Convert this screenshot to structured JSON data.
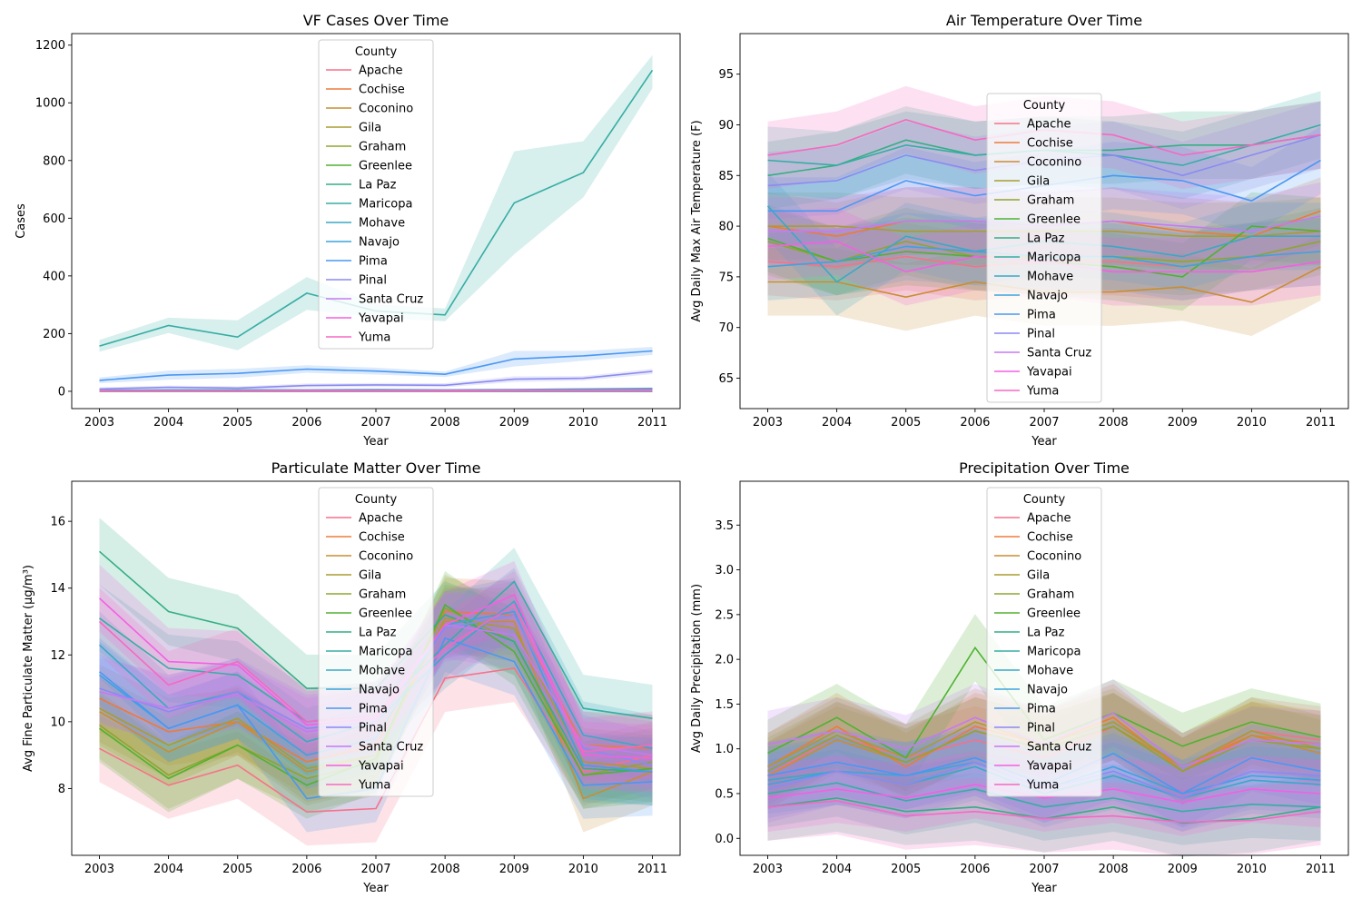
{
  "figure": {
    "background": "#ffffff"
  },
  "legend_title": "County",
  "counties": [
    "Apache",
    "Cochise",
    "Coconino",
    "Gila",
    "Graham",
    "Greenlee",
    "La Paz",
    "Maricopa",
    "Mohave",
    "Navajo",
    "Pima",
    "Pinal",
    "Santa Cruz",
    "Yavapai",
    "Yuma"
  ],
  "colors": [
    "#f77189",
    "#ee7a3a",
    "#c98d31",
    "#a99c31",
    "#8ea531",
    "#50b131",
    "#34ae83",
    "#36ada4",
    "#38a9c5",
    "#3ba4de",
    "#4a97f2",
    "#8a8af2",
    "#c579f4",
    "#f45fe3",
    "#f668c2"
  ],
  "chart_data": [
    {
      "id": "cases",
      "type": "line",
      "title": "VF Cases Over Time",
      "xlabel": "Year",
      "ylabel": "Cases",
      "x": [
        2003,
        2004,
        2005,
        2006,
        2007,
        2008,
        2009,
        2010,
        2011
      ],
      "xticks": [
        "2003",
        "2004",
        "2005",
        "2006",
        "2007",
        "2008",
        "2009",
        "2010",
        "2011"
      ],
      "ylim": [
        -60,
        1240
      ],
      "yticks": [
        0,
        200,
        400,
        600,
        800,
        1000,
        1200
      ],
      "ytick_labels": [
        "0",
        "200",
        "400",
        "600",
        "800",
        "1000",
        "1200"
      ],
      "legend_placement": "upper center",
      "series": [
        {
          "name": "Apache",
          "values": [
            0,
            0,
            0,
            0,
            0,
            0,
            0,
            0,
            0
          ]
        },
        {
          "name": "Cochise",
          "values": [
            2,
            2,
            1,
            2,
            2,
            2,
            3,
            3,
            4
          ]
        },
        {
          "name": "Coconino",
          "values": [
            1,
            1,
            1,
            1,
            1,
            1,
            1,
            1,
            1
          ]
        },
        {
          "name": "Gila",
          "values": [
            1,
            1,
            1,
            1,
            1,
            1,
            2,
            2,
            2
          ]
        },
        {
          "name": "Graham",
          "values": [
            1,
            1,
            1,
            1,
            1,
            1,
            1,
            1,
            1
          ]
        },
        {
          "name": "Greenlee",
          "values": [
            0,
            0,
            0,
            0,
            0,
            0,
            0,
            0,
            0
          ]
        },
        {
          "name": "La Paz",
          "values": [
            1,
            1,
            1,
            1,
            1,
            1,
            1,
            1,
            1
          ]
        },
        {
          "name": "Maricopa",
          "values": [
            157,
            228,
            188,
            340,
            278,
            265,
            653,
            758,
            1113
          ],
          "band": [
            [
              137,
              178
            ],
            [
              202,
              255
            ],
            [
              142,
              246
            ],
            [
              282,
              396
            ],
            [
              255,
              301
            ],
            [
              243,
              287
            ],
            [
              475,
              832
            ],
            [
              672,
              867
            ],
            [
              1050,
              1165
            ]
          ]
        },
        {
          "name": "Mohave",
          "values": [
            3,
            5,
            5,
            5,
            6,
            5,
            6,
            8,
            10
          ]
        },
        {
          "name": "Navajo",
          "values": [
            1,
            1,
            1,
            1,
            1,
            1,
            1,
            1,
            1
          ]
        },
        {
          "name": "Pima",
          "values": [
            38,
            56,
            62,
            77,
            70,
            59,
            112,
            123,
            140
          ],
          "band": [
            [
              28,
              48
            ],
            [
              40,
              72
            ],
            [
              47,
              78
            ],
            [
              64,
              90
            ],
            [
              58,
              82
            ],
            [
              50,
              68
            ],
            [
              86,
              140
            ],
            [
              106,
              140
            ],
            [
              126,
              154
            ]
          ]
        },
        {
          "name": "Pinal",
          "values": [
            8,
            14,
            11,
            20,
            22,
            21,
            42,
            45,
            69
          ],
          "band": [
            [
              2,
              14
            ],
            [
              8,
              20
            ],
            [
              5,
              17
            ],
            [
              13,
              27
            ],
            [
              15,
              29
            ],
            [
              14,
              28
            ],
            [
              32,
              52
            ],
            [
              37,
              53
            ],
            [
              60,
              78
            ]
          ]
        },
        {
          "name": "Santa Cruz",
          "values": [
            1,
            1,
            1,
            1,
            1,
            1,
            2,
            2,
            2
          ]
        },
        {
          "name": "Yavapai",
          "values": [
            2,
            2,
            2,
            3,
            3,
            3,
            4,
            4,
            5
          ]
        },
        {
          "name": "Yuma",
          "values": [
            2,
            2,
            2,
            3,
            3,
            3,
            4,
            4,
            5
          ]
        }
      ]
    },
    {
      "id": "temp",
      "type": "line",
      "title": "Air Temperature Over Time",
      "xlabel": "Year",
      "ylabel": "Avg Daily Max Air Temperature (F)",
      "x": [
        2003,
        2004,
        2005,
        2006,
        2007,
        2008,
        2009,
        2010,
        2011
      ],
      "xticks": [
        "2003",
        "2004",
        "2005",
        "2006",
        "2007",
        "2008",
        "2009",
        "2010",
        "2011"
      ],
      "ylim": [
        62,
        99
      ],
      "yticks": [
        65,
        70,
        75,
        80,
        85,
        90,
        95
      ],
      "ytick_labels": [
        "65",
        "70",
        "75",
        "80",
        "85",
        "90",
        "95"
      ],
      "legend_placement": "center",
      "series": [
        {
          "name": "Apache",
          "values": [
            76.5,
            76.0,
            77.0,
            76.0,
            76.5,
            76.5,
            76.0,
            77.0,
            77.5
          ]
        },
        {
          "name": "Cochise",
          "values": [
            80.0,
            79.0,
            80.5,
            80.5,
            80.0,
            80.5,
            79.5,
            79.0,
            81.5
          ]
        },
        {
          "name": "Coconino",
          "values": [
            74.5,
            74.5,
            73.0,
            74.5,
            73.5,
            73.5,
            74.0,
            72.5,
            76.0
          ]
        },
        {
          "name": "Gila",
          "values": [
            80.0,
            80.0,
            79.5,
            79.5,
            79.5,
            79.5,
            79.0,
            79.0,
            79.5
          ]
        },
        {
          "name": "Graham",
          "values": [
            78.5,
            76.5,
            78.5,
            77.0,
            77.0,
            77.0,
            76.5,
            77.0,
            78.5
          ]
        },
        {
          "name": "Greenlee",
          "values": [
            78.8,
            76.5,
            77.5,
            77.0,
            76.5,
            76.0,
            75.0,
            80.0,
            79.5
          ]
        },
        {
          "name": "La Paz",
          "values": [
            85.0,
            86.0,
            88.5,
            87.0,
            87.5,
            87.5,
            88.0,
            88.0,
            89.0
          ]
        },
        {
          "name": "Maricopa",
          "values": [
            86.5,
            86.0,
            88.0,
            87.0,
            87.5,
            87.0,
            86.0,
            88.0,
            90.0
          ]
        },
        {
          "name": "Mohave",
          "values": [
            82.0,
            74.5,
            79.0,
            77.5,
            78.5,
            78.0,
            77.0,
            79.0,
            79.0
          ]
        },
        {
          "name": "Navajo",
          "values": [
            76.0,
            76.5,
            78.0,
            77.5,
            77.0,
            77.0,
            76.0,
            77.0,
            77.5
          ]
        },
        {
          "name": "Pima",
          "values": [
            81.5,
            81.5,
            84.5,
            83.0,
            84.0,
            85.0,
            84.5,
            82.5,
            86.5
          ]
        },
        {
          "name": "Pinal",
          "values": [
            84.0,
            84.5,
            87.0,
            85.5,
            86.5,
            87.0,
            85.0,
            87.0,
            89.0
          ]
        },
        {
          "name": "Santa Cruz",
          "values": [
            79.5,
            79.5,
            80.5,
            80.5,
            80.0,
            80.5,
            80.0,
            79.5,
            81.0
          ]
        },
        {
          "name": "Yavapai",
          "values": [
            78.0,
            78.5,
            75.5,
            77.0,
            76.5,
            75.5,
            75.5,
            75.5,
            76.5
          ]
        },
        {
          "name": "Yuma",
          "values": [
            87.0,
            88.0,
            90.5,
            88.5,
            89.5,
            89.0,
            87.0,
            88.0,
            89.0
          ]
        }
      ]
    },
    {
      "id": "pm",
      "type": "line",
      "title": "Particulate Matter Over Time",
      "xlabel": "Year",
      "ylabel": "Avg Fine Particulate Matter (µg/m³)",
      "x": [
        2003,
        2004,
        2005,
        2006,
        2007,
        2008,
        2009,
        2010,
        2011
      ],
      "xticks": [
        "2003",
        "2004",
        "2005",
        "2006",
        "2007",
        "2008",
        "2009",
        "2010",
        "2011"
      ],
      "ylim": [
        6.0,
        17.2
      ],
      "yticks": [
        8,
        10,
        12,
        14,
        16
      ],
      "ytick_labels": [
        "8",
        "10",
        "12",
        "14",
        "16"
      ],
      "legend_placement": "upper center",
      "series": [
        {
          "name": "Apache",
          "values": [
            9.2,
            8.1,
            8.7,
            7.3,
            7.4,
            11.3,
            11.6,
            8.5,
            9.0
          ]
        },
        {
          "name": "Cochise",
          "values": [
            10.7,
            9.7,
            10.0,
            8.8,
            9.3,
            13.3,
            13.2,
            9.3,
            9.2
          ]
        },
        {
          "name": "Coconino",
          "values": [
            10.3,
            9.1,
            10.0,
            8.5,
            9.0,
            13.0,
            13.0,
            7.7,
            8.5
          ]
        },
        {
          "name": "Gila",
          "values": [
            10.4,
            9.3,
            10.1,
            8.6,
            9.0,
            13.1,
            12.8,
            8.8,
            8.6
          ]
        },
        {
          "name": "Graham",
          "values": [
            9.9,
            8.4,
            9.3,
            8.3,
            8.8,
            13.4,
            12.4,
            8.4,
            8.8
          ]
        },
        {
          "name": "Greenlee",
          "values": [
            9.8,
            8.3,
            9.3,
            8.1,
            8.9,
            13.5,
            12.1,
            8.4,
            8.6
          ]
        },
        {
          "name": "La Paz",
          "values": [
            15.1,
            13.3,
            12.8,
            11.0,
            11.0,
            13.2,
            12.4,
            8.6,
            8.5
          ]
        },
        {
          "name": "Maricopa",
          "values": [
            13.1,
            11.6,
            11.4,
            10.0,
            10.2,
            12.3,
            14.2,
            10.4,
            10.1
          ]
        },
        {
          "name": "Mohave",
          "values": [
            12.3,
            10.4,
            10.9,
            9.4,
            10.0,
            12.0,
            13.6,
            9.6,
            9.2
          ]
        },
        {
          "name": "Navajo",
          "values": [
            11.4,
            9.8,
            10.5,
            9.0,
            9.5,
            12.9,
            13.3,
            8.7,
            8.5
          ]
        },
        {
          "name": "Pima",
          "values": [
            11.5,
            9.8,
            10.5,
            7.7,
            8.0,
            12.5,
            11.8,
            8.1,
            8.2
          ]
        },
        {
          "name": "Pinal",
          "values": [
            11.0,
            10.3,
            10.9,
            9.8,
            10.0,
            12.8,
            13.2,
            9.2,
            8.7
          ]
        },
        {
          "name": "Santa Cruz",
          "values": [
            10.9,
            10.4,
            10.8,
            9.7,
            10.0,
            12.9,
            12.6,
            9.3,
            9.0
          ]
        },
        {
          "name": "Yavapai",
          "values": [
            13.7,
            11.8,
            11.7,
            9.9,
            10.1,
            12.9,
            13.8,
            9.0,
            8.9
          ]
        },
        {
          "name": "Yuma",
          "values": [
            13.0,
            11.1,
            11.8,
            10.0,
            10.2,
            12.2,
            13.5,
            9.1,
            9.3
          ]
        }
      ]
    },
    {
      "id": "precip",
      "type": "line",
      "title": "Precipitation Over Time",
      "xlabel": "Year",
      "ylabel": "Avg Daily Precipitation (mm)",
      "x": [
        2003,
        2004,
        2005,
        2006,
        2007,
        2008,
        2009,
        2010,
        2011
      ],
      "xticks": [
        "2003",
        "2004",
        "2005",
        "2006",
        "2007",
        "2008",
        "2009",
        "2010",
        "2011"
      ],
      "ylim": [
        -0.19,
        3.99
      ],
      "yticks": [
        0.0,
        0.5,
        1.0,
        1.5,
        2.0,
        2.5,
        3.0,
        3.5
      ],
      "ytick_labels": [
        "0.0",
        "0.5",
        "1.0",
        "1.5",
        "2.0",
        "2.5",
        "3.0",
        "3.5"
      ],
      "legend_placement": "upper center",
      "series": [
        {
          "name": "Apache",
          "values": [
            0.7,
            1.15,
            0.9,
            1.1,
            0.9,
            1.25,
            0.75,
            1.2,
            1.1
          ]
        },
        {
          "name": "Cochise",
          "values": [
            0.8,
            1.25,
            0.8,
            1.25,
            1.05,
            1.35,
            0.75,
            1.15,
            1.05
          ]
        },
        {
          "name": "Coconino",
          "values": [
            0.7,
            1.1,
            0.85,
            1.2,
            1.0,
            1.25,
            0.8,
            1.15,
            0.95
          ]
        },
        {
          "name": "Gila",
          "values": [
            0.8,
            1.2,
            0.9,
            1.3,
            1.05,
            1.3,
            0.8,
            1.2,
            1.0
          ]
        },
        {
          "name": "Graham",
          "values": [
            0.75,
            1.15,
            0.85,
            1.2,
            1.0,
            1.25,
            0.75,
            1.1,
            1.0
          ]
        },
        {
          "name": "Greenlee",
          "values": [
            0.95,
            1.35,
            0.9,
            2.13,
            1.1,
            1.4,
            1.03,
            1.3,
            1.13
          ]
        },
        {
          "name": "La Paz",
          "values": [
            0.35,
            0.45,
            0.3,
            0.35,
            0.22,
            0.35,
            0.17,
            0.22,
            0.35
          ]
        },
        {
          "name": "Maricopa",
          "values": [
            0.5,
            0.62,
            0.42,
            0.55,
            0.35,
            0.45,
            0.3,
            0.38,
            0.35
          ]
        },
        {
          "name": "Mohave",
          "values": [
            0.65,
            0.75,
            0.6,
            0.8,
            0.5,
            0.7,
            0.45,
            0.65,
            0.6
          ]
        },
        {
          "name": "Navajo",
          "values": [
            0.6,
            0.75,
            0.7,
            0.85,
            0.55,
            0.8,
            0.5,
            0.7,
            0.65
          ]
        },
        {
          "name": "Pima",
          "values": [
            0.7,
            0.85,
            0.7,
            0.9,
            0.6,
            0.95,
            0.5,
            0.9,
            0.75
          ]
        },
        {
          "name": "Pinal",
          "values": [
            0.55,
            0.75,
            0.6,
            0.85,
            0.55,
            0.75,
            0.45,
            0.75,
            0.7
          ]
        },
        {
          "name": "Santa Cruz",
          "values": [
            1.05,
            1.2,
            1.0,
            1.35,
            1.05,
            1.4,
            0.8,
            1.1,
            1.05
          ]
        },
        {
          "name": "Yavapai",
          "values": [
            0.45,
            0.55,
            0.45,
            0.6,
            0.45,
            0.55,
            0.4,
            0.55,
            0.5
          ]
        },
        {
          "name": "Yuma",
          "values": [
            0.35,
            0.42,
            0.25,
            0.3,
            0.22,
            0.25,
            0.18,
            0.2,
            0.3
          ]
        }
      ]
    }
  ]
}
